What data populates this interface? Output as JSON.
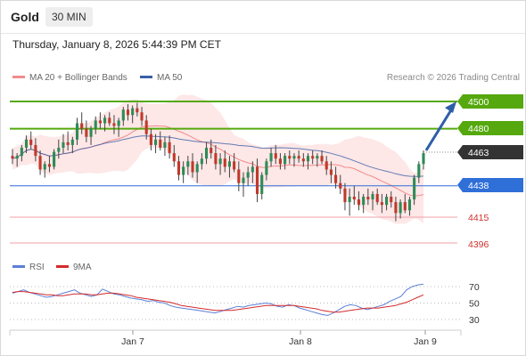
{
  "header": {
    "symbol": "Gold",
    "timeframe": "30 MIN",
    "timestamp": "Thursday, January 8, 2026 5:44:39 PM CET"
  },
  "legend": {
    "ma20_label": "MA 20 + Bollinger Bands",
    "ma20_color": "#f28b8b",
    "ma50_label": "MA 50",
    "ma50_color": "#3a5fa8",
    "credit": "Research © 2026 Trading Central"
  },
  "rsi_legend": {
    "rsi_label": "RSI",
    "rsi_color": "#5b7fd6",
    "ma_label": "9MA",
    "ma_color": "#d42a2a"
  },
  "colors": {
    "green_level": "#55a80e",
    "blue_level": "#2f6fd8",
    "red_level": "#f2a0a8",
    "red_text": "#d0312d",
    "current_bg": "#333333",
    "arrow": "#2e5ea8",
    "candle_up": "#2e8b57",
    "candle_down": "#c0392b"
  },
  "chart_data": [
    {
      "type": "line",
      "name": "price",
      "x_axis": {
        "ticks": [
          "Jan 7",
          "Jan 8",
          "Jan 9"
        ]
      },
      "y_axis": {
        "unit": "USD",
        "range": [
          4390,
          4510
        ]
      },
      "levels": [
        {
          "value": 4500,
          "label": "4500",
          "kind": "resistance"
        },
        {
          "value": 4480,
          "label": "4480",
          "kind": "resistance"
        },
        {
          "value": 4463,
          "label": "4463",
          "kind": "current"
        },
        {
          "value": 4438,
          "label": "4438",
          "kind": "pivot"
        },
        {
          "value": 4415,
          "label": "4415",
          "kind": "support"
        },
        {
          "value": 4396,
          "label": "4396",
          "kind": "support"
        }
      ],
      "candles": [
        [
          4460,
          4465,
          4454,
          4458
        ],
        [
          4458,
          4462,
          4452,
          4460
        ],
        [
          4460,
          4468,
          4456,
          4466
        ],
        [
          4466,
          4475,
          4462,
          4472
        ],
        [
          4472,
          4478,
          4465,
          4468
        ],
        [
          4468,
          4473,
          4456,
          4460
        ],
        [
          4460,
          4464,
          4446,
          4450
        ],
        [
          4450,
          4456,
          4444,
          4454
        ],
        [
          4454,
          4460,
          4448,
          4452
        ],
        [
          4452,
          4465,
          4450,
          4463
        ],
        [
          4463,
          4472,
          4458,
          4466
        ],
        [
          4466,
          4476,
          4462,
          4470
        ],
        [
          4470,
          4478,
          4464,
          4468
        ],
        [
          4468,
          4474,
          4462,
          4472
        ],
        [
          4472,
          4488,
          4468,
          4484
        ],
        [
          4484,
          4492,
          4476,
          4480
        ],
        [
          4480,
          4486,
          4470,
          4474
        ],
        [
          4474,
          4482,
          4468,
          4480
        ],
        [
          4480,
          4489,
          4476,
          4486
        ],
        [
          4486,
          4492,
          4480,
          4484
        ],
        [
          4484,
          4490,
          4478,
          4488
        ],
        [
          4488,
          4492,
          4482,
          4484
        ],
        [
          4484,
          4490,
          4476,
          4482
        ],
        [
          4482,
          4488,
          4474,
          4486
        ],
        [
          4486,
          4496,
          4482,
          4494
        ],
        [
          4494,
          4498,
          4486,
          4490
        ],
        [
          4490,
          4497,
          4484,
          4495
        ],
        [
          4495,
          4499,
          4489,
          4492
        ],
        [
          4492,
          4496,
          4482,
          4486
        ],
        [
          4486,
          4490,
          4472,
          4476
        ],
        [
          4476,
          4480,
          4464,
          4468
        ],
        [
          4468,
          4476,
          4462,
          4472
        ],
        [
          4472,
          4478,
          4464,
          4466
        ],
        [
          4466,
          4474,
          4460,
          4470
        ],
        [
          4470,
          4475,
          4458,
          4462
        ],
        [
          4462,
          4468,
          4452,
          4456
        ],
        [
          4456,
          4460,
          4442,
          4446
        ],
        [
          4446,
          4456,
          4440,
          4452
        ],
        [
          4452,
          4460,
          4446,
          4456
        ],
        [
          4456,
          4462,
          4444,
          4448
        ],
        [
          4448,
          4456,
          4440,
          4454
        ],
        [
          4454,
          4462,
          4450,
          4458
        ],
        [
          4458,
          4470,
          4454,
          4466
        ],
        [
          4466,
          4472,
          4458,
          4462
        ],
        [
          4462,
          4468,
          4450,
          4454
        ],
        [
          4454,
          4462,
          4446,
          4458
        ],
        [
          4458,
          4464,
          4448,
          4452
        ],
        [
          4452,
          4460,
          4444,
          4456
        ],
        [
          4456,
          4462,
          4448,
          4450
        ],
        [
          4450,
          4456,
          4434,
          4440
        ],
        [
          4440,
          4448,
          4430,
          4444
        ],
        [
          4444,
          4452,
          4438,
          4448
        ],
        [
          4448,
          4456,
          4440,
          4452
        ],
        [
          4452,
          4458,
          4426,
          4432
        ],
        [
          4432,
          4448,
          4428,
          4446
        ],
        [
          4446,
          4458,
          4442,
          4456
        ],
        [
          4456,
          4466,
          4452,
          4462
        ],
        [
          4462,
          4468,
          4454,
          4458
        ],
        [
          4458,
          4462,
          4450,
          4454
        ],
        [
          4454,
          4462,
          4450,
          4460
        ],
        [
          4460,
          4464,
          4454,
          4458
        ],
        [
          4458,
          4462,
          4452,
          4460
        ],
        [
          4460,
          4464,
          4455,
          4458
        ],
        [
          4458,
          4462,
          4452,
          4456
        ],
        [
          4456,
          4462,
          4450,
          4460
        ],
        [
          4460,
          4464,
          4454,
          4458
        ],
        [
          4458,
          4462,
          4452,
          4460
        ],
        [
          4460,
          4464,
          4454,
          4456
        ],
        [
          4456,
          4460,
          4446,
          4450
        ],
        [
          4450,
          4456,
          4440,
          4446
        ],
        [
          4446,
          4452,
          4436,
          4440
        ],
        [
          4440,
          4446,
          4432,
          4436
        ],
        [
          4436,
          4440,
          4420,
          4426
        ],
        [
          4426,
          4436,
          4416,
          4430
        ],
        [
          4430,
          4438,
          4424,
          4428
        ],
        [
          4428,
          4434,
          4420,
          4424
        ],
        [
          4424,
          4432,
          4418,
          4430
        ],
        [
          4430,
          4436,
          4424,
          4428
        ],
        [
          4428,
          4434,
          4420,
          4432
        ],
        [
          4432,
          4436,
          4424,
          4426
        ],
        [
          4426,
          4432,
          4418,
          4424
        ],
        [
          4424,
          4432,
          4420,
          4430
        ],
        [
          4430,
          4434,
          4422,
          4426
        ],
        [
          4426,
          4430,
          4412,
          4418
        ],
        [
          4418,
          4428,
          4414,
          4426
        ],
        [
          4426,
          4432,
          4418,
          4420
        ],
        [
          4420,
          4430,
          4416,
          4428
        ],
        [
          4428,
          4446,
          4424,
          4444
        ],
        [
          4444,
          4456,
          4440,
          4454
        ],
        [
          4454,
          4464,
          4450,
          4462
        ]
      ]
    },
    {
      "type": "line",
      "name": "RSI",
      "y_axis": {
        "ticks": [
          70,
          50,
          30
        ],
        "range": [
          20,
          80
        ]
      },
      "series": [
        {
          "name": "RSI",
          "values": [
            62,
            64,
            66,
            63,
            61,
            59,
            57,
            58,
            60,
            62,
            64,
            66,
            62,
            60,
            58,
            60,
            67,
            64,
            61,
            60,
            58,
            56,
            55,
            54,
            52,
            53,
            51,
            50,
            47,
            45,
            44,
            43,
            42,
            41,
            40,
            39,
            38,
            40,
            42,
            44,
            46,
            45,
            47,
            48,
            49,
            50,
            49,
            46,
            45,
            48,
            47,
            44,
            42,
            40,
            38,
            36,
            35,
            38,
            42,
            46,
            48,
            47,
            44,
            42,
            44,
            46,
            48,
            52,
            55,
            58,
            66,
            70,
            72,
            73
          ]
        },
        {
          "name": "9MA",
          "values": [
            63,
            64,
            64,
            63,
            62,
            61,
            60,
            60,
            59,
            59,
            60,
            61,
            61,
            61,
            60,
            60,
            61,
            62,
            62,
            61,
            60,
            59,
            57,
            56,
            55,
            54,
            53,
            52,
            51,
            49,
            47,
            46,
            45,
            44,
            43,
            42,
            41,
            41,
            41,
            41,
            42,
            43,
            44,
            45,
            46,
            47,
            47,
            47,
            47,
            47,
            47,
            46,
            45,
            44,
            43,
            41,
            40,
            39,
            39,
            40,
            41,
            42,
            43,
            44,
            44,
            44,
            45,
            46,
            47,
            49,
            51,
            54,
            57,
            60
          ]
        }
      ]
    }
  ]
}
